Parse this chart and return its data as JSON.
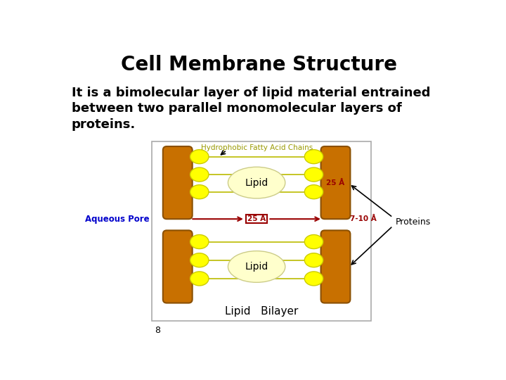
{
  "title": "Cell Membrane Structure",
  "bg_color": "#ffffff",
  "protein_color": "#C87000",
  "protein_edge_color": "#8B5000",
  "lipid_head_color": "#FFFF00",
  "lipid_head_edge": "#CCCC00",
  "lipid_body_color": "#FFFFCC",
  "lipid_body_edge": "#CCCC88",
  "line_color": "#BBBB00",
  "box_edge_color": "#aaaaaa",
  "label_hydrophobic": "Hydrophobic Fatty Acid Chains",
  "label_hydrophobic_color": "#999900",
  "label_lipid": "Lipid",
  "label_aqueous": "Aqueous Pore",
  "label_aqueous_color": "#0000CC",
  "label_25A_box": "25 Å",
  "label_25A_right": "25 Å",
  "label_710A": "7-10 Å",
  "label_proteins": "Proteins",
  "label_bilayer": "Lipid   Bilayer",
  "label_page": "8",
  "red_color": "#990000",
  "title_fontsize": 20,
  "subtitle_fontsize": 13
}
